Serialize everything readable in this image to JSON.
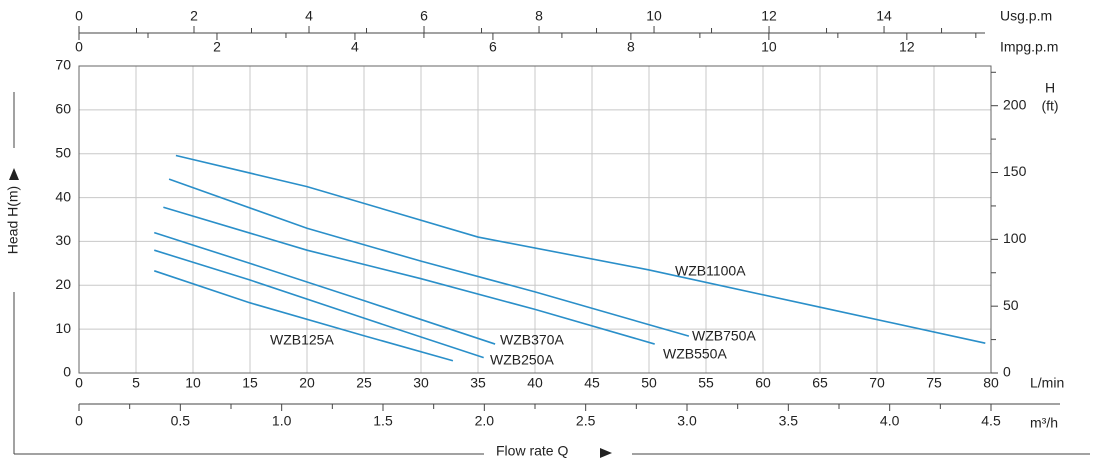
{
  "chart_data": {
    "type": "line",
    "xlabel": "L/min",
    "xlim": [
      0,
      80
    ],
    "xticks": [
      0,
      5,
      10,
      15,
      20,
      25,
      30,
      35,
      40,
      45,
      50,
      55,
      60,
      65,
      70,
      75,
      80
    ],
    "ylabel": "Head H(m)",
    "ylim": [
      0,
      70
    ],
    "yticks": [
      0,
      10,
      20,
      30,
      40,
      50,
      60,
      70
    ],
    "y2label": [
      "H",
      "(ft)"
    ],
    "y2lim": [
      0,
      229.7
    ],
    "y2ticks": [
      0,
      50,
      100,
      150,
      200
    ],
    "y2minor": [
      25,
      75,
      125,
      175,
      225
    ],
    "grid": true,
    "bottom_axis": {
      "label": "m³/h",
      "lim": [
        0,
        4.5
      ],
      "ticks": [
        0,
        0.5,
        {
          "value": 1,
          "label": "1.0"
        },
        1.5,
        {
          "value": 2,
          "label": "2.0"
        },
        2.5,
        {
          "value": 3,
          "label": "3.0"
        },
        3.5,
        {
          "value": 4,
          "label": "4.0"
        },
        4.5
      ],
      "minor": [
        0.25,
        0.75,
        1.25,
        1.75,
        2.25,
        2.75,
        3.25,
        3.75,
        4.25
      ]
    },
    "flow_label": "Flow rate Q",
    "top_axes": [
      {
        "label": "Usg.p.m",
        "lim": [
          0,
          15.86
        ],
        "ticks": [
          0,
          2,
          4,
          6,
          8,
          10,
          12,
          14
        ],
        "minor": [
          1,
          3,
          5,
          7,
          9,
          11,
          13,
          15
        ]
      },
      {
        "label": "Impg.p.m",
        "lim": [
          0,
          13.22
        ],
        "ticks": [
          0,
          2,
          4,
          6,
          8,
          10,
          12
        ],
        "minor": [
          1,
          3,
          5,
          7,
          9,
          11,
          13
        ]
      }
    ],
    "series": [
      {
        "name": "WZB1100A",
        "color": "#2a8fc9",
        "x": [
          8.5,
          20,
          35,
          50,
          65,
          79.5
        ],
        "values": [
          49.6,
          42.5,
          31,
          23.5,
          15,
          6.8
        ]
      },
      {
        "name": "WZB750A",
        "color": "#2a8fc9",
        "x": [
          7.9,
          20,
          30,
          40,
          53.5
        ],
        "values": [
          44.2,
          33,
          25.5,
          18.5,
          8.4
        ]
      },
      {
        "name": "WZB550A",
        "color": "#2a8fc9",
        "x": [
          7.4,
          20,
          30,
          40,
          50.5
        ],
        "values": [
          37.8,
          28,
          21.5,
          14.5,
          6.6
        ]
      },
      {
        "name": "WZB370A",
        "color": "#2a8fc9",
        "x": [
          6.6,
          15,
          25,
          36.5
        ],
        "values": [
          32,
          25,
          16.5,
          6.6
        ]
      },
      {
        "name": "WZB250A",
        "color": "#2a8fc9",
        "x": [
          6.6,
          15,
          25,
          35.5
        ],
        "values": [
          28,
          21.2,
          12.5,
          3.5
        ]
      },
      {
        "name": "WZB125A",
        "color": "#2a8fc9",
        "x": [
          6.6,
          15,
          25,
          32.8
        ],
        "values": [
          23.3,
          16,
          8.5,
          2.8
        ]
      }
    ]
  }
}
